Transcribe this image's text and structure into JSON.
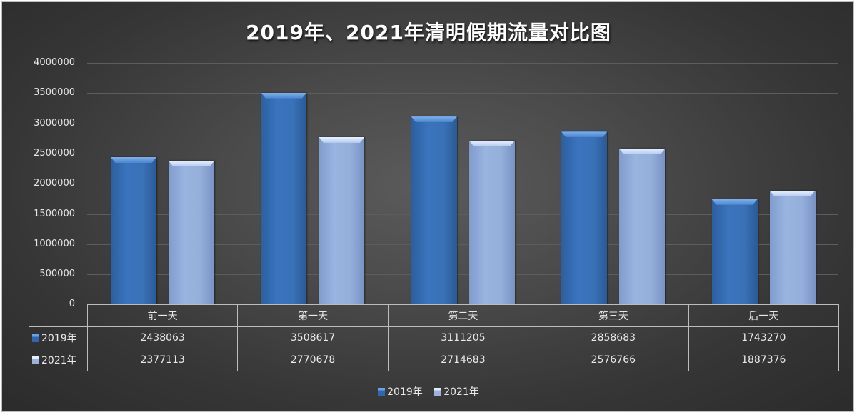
{
  "chart_data": {
    "type": "bar",
    "title": "2019年、2021年清明假期流量对比图",
    "xlabel": "",
    "ylabel": "",
    "categories": [
      "前一天",
      "第一天",
      "第二天",
      "第三天",
      "后一天"
    ],
    "series": [
      {
        "name": "2019年",
        "color": "#3a72b8",
        "values": [
          2438063,
          3508617,
          3111205,
          2858683,
          1743270
        ]
      },
      {
        "name": "2021年",
        "color": "#95afdb",
        "values": [
          2377113,
          2770678,
          2714683,
          2576766,
          1887376
        ]
      }
    ],
    "ylim": [
      0,
      4000000
    ],
    "y_ticks": [
      "0",
      "500000",
      "1000000",
      "1500000",
      "2000000",
      "2500000",
      "3000000",
      "3500000",
      "4000000"
    ],
    "grid": true,
    "legend_position": "bottom",
    "data_table": true
  },
  "title": "2019年、2021年清明假期流量对比图",
  "y_axis": {
    "ticks": [
      "4000000",
      "3500000",
      "3000000",
      "2500000",
      "2000000",
      "1500000",
      "1000000",
      "500000",
      "0"
    ]
  },
  "table": {
    "headers": [
      "前一天",
      "第一天",
      "第二天",
      "第三天",
      "后一天"
    ],
    "rows": [
      {
        "label": "2019年",
        "cells": [
          "2438063",
          "3508617",
          "3111205",
          "2858683",
          "1743270"
        ]
      },
      {
        "label": "2021年",
        "cells": [
          "2377113",
          "2770678",
          "2714683",
          "2576766",
          "1887376"
        ]
      }
    ]
  },
  "legend": {
    "items": [
      {
        "label": "2019年",
        "color": "#3a72b8"
      },
      {
        "label": "2021年",
        "color": "#95afdb"
      }
    ]
  }
}
